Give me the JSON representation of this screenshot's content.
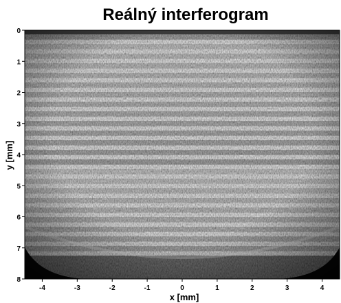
{
  "figure": {
    "title": "Reálný interferogram",
    "xlabel": "x [mm]",
    "ylabel": "y [mm]",
    "x_ticks": [
      "-4",
      "-3",
      "-2",
      "-1",
      "0",
      "1",
      "2",
      "3",
      "4"
    ],
    "y_ticks": [
      "0",
      "1",
      "2",
      "3",
      "4",
      "5",
      "6",
      "7",
      "8"
    ],
    "x_range": [
      -4.5,
      4.5
    ],
    "y_range": [
      0,
      8
    ],
    "image_kind": "grayscale interferogram with horizontal fringes"
  }
}
